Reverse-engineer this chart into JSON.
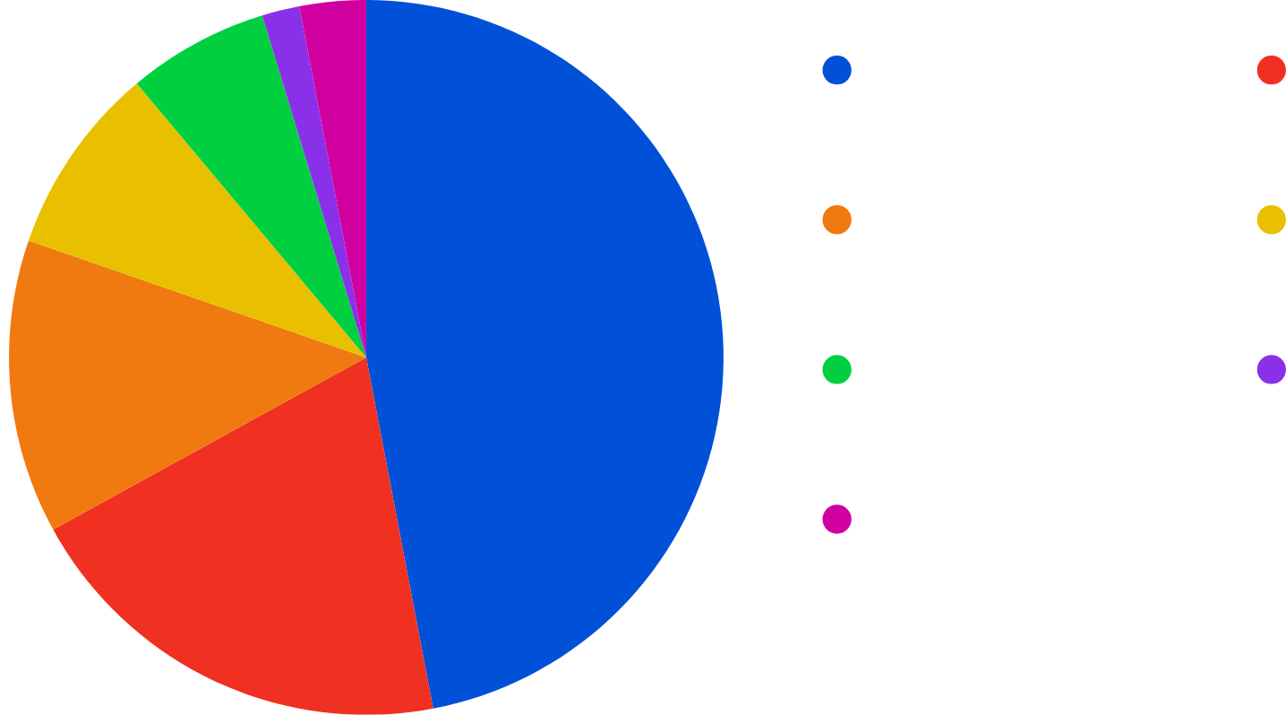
{
  "chart_data": {
    "type": "pie",
    "categories": [
      null,
      null,
      null,
      null,
      null,
      null,
      null
    ],
    "values": [
      47,
      20,
      13.3,
      8.6,
      6.4,
      1.7,
      3
    ],
    "colors": [
      "#0050d8",
      "#f03020",
      "#f07a10",
      "#e8c000",
      "#00d040",
      "#8a30e8",
      "#d000a0"
    ]
  }
}
